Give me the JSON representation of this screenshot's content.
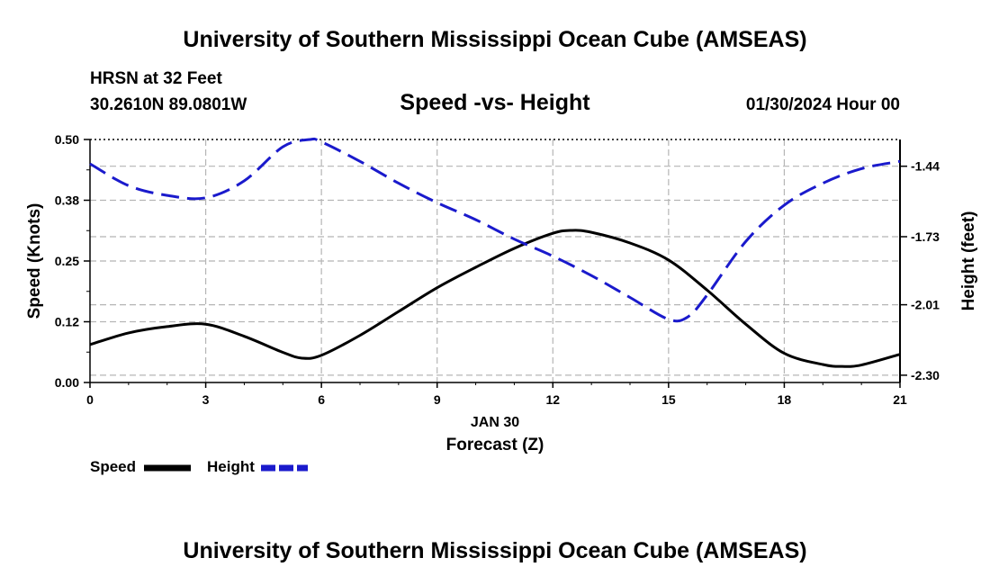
{
  "header": {
    "title": "University of Southern Mississippi Ocean Cube (AMSEAS)",
    "station": "HRSN at 32 Feet",
    "coords": "30.2610N  89.0801W",
    "date": "01/30/2024 Hour 00"
  },
  "footer": {
    "title": "University of Southern Mississippi Ocean Cube (AMSEAS)"
  },
  "chart_data": {
    "type": "line",
    "title": "Speed -vs- Height",
    "xlabel_date": "JAN 30",
    "xlabel": "Forecast (Z)",
    "ylabel_left": "Speed (Knots)",
    "ylabel_right": "Height (feet)",
    "xlim": [
      0,
      21
    ],
    "ylim_left": [
      0,
      0.5
    ],
    "ylim_right": [
      -2.33,
      -1.33
    ],
    "x_ticks": [
      0,
      3,
      6,
      9,
      12,
      15,
      18,
      21
    ],
    "x_tick_labels": [
      "0",
      "3",
      "6",
      "9",
      "12",
      "15",
      "18",
      "21"
    ],
    "y_left_ticks": [
      0.0,
      0.125,
      0.25,
      0.375,
      0.5
    ],
    "y_left_tick_labels": [
      "0.00",
      "0.12",
      "0.25",
      "0.38",
      "0.50"
    ],
    "y_right_ticks": [
      -2.3,
      -2.01,
      -1.73,
      -1.44
    ],
    "y_right_tick_labels": [
      "-2.30",
      "-2.01",
      "-1.73",
      "-1.44"
    ],
    "grid": true,
    "series": [
      {
        "name": "Speed",
        "axis": "left",
        "color": "#000000",
        "style": "solid",
        "x": [
          0,
          1,
          2,
          3,
          4,
          5,
          5.5,
          6,
          7,
          8,
          9,
          10,
          11,
          12,
          12.5,
          13,
          14,
          15,
          16,
          17,
          18,
          19,
          19.5,
          20,
          21
        ],
        "values": [
          0.078,
          0.102,
          0.115,
          0.12,
          0.095,
          0.062,
          0.05,
          0.056,
          0.097,
          0.146,
          0.195,
          0.237,
          0.276,
          0.307,
          0.313,
          0.309,
          0.287,
          0.252,
          0.19,
          0.12,
          0.06,
          0.037,
          0.033,
          0.036,
          0.058
        ]
      },
      {
        "name": "Height",
        "axis": "right",
        "color": "#1a1acc",
        "style": "dashed",
        "x": [
          0,
          1,
          2,
          3,
          4,
          5,
          5.7,
          6,
          7,
          8,
          9,
          10,
          11,
          12,
          13,
          14,
          15,
          15.5,
          16,
          17,
          18,
          19,
          20,
          21
        ],
        "values": [
          -1.43,
          -1.52,
          -1.56,
          -1.57,
          -1.5,
          -1.36,
          -1.33,
          -1.34,
          -1.42,
          -1.51,
          -1.59,
          -1.66,
          -1.74,
          -1.81,
          -1.89,
          -1.98,
          -2.07,
          -2.06,
          -1.97,
          -1.75,
          -1.6,
          -1.51,
          -1.45,
          -1.42
        ]
      }
    ]
  },
  "legend": {
    "items": [
      {
        "label": "Speed",
        "color": "#000000",
        "style": "solid"
      },
      {
        "label": "Height",
        "color": "#1a1acc",
        "style": "dashed"
      }
    ]
  }
}
